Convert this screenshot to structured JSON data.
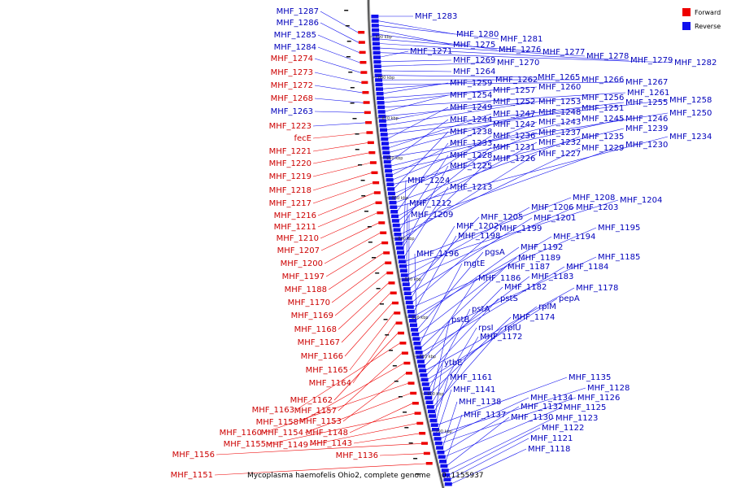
{
  "caption": "Mycoplasma haemofelis Ohio2, complete genome",
  "range_label": "0..1155937",
  "legend": [
    {
      "label": "Forward",
      "color": "#ee0000"
    },
    {
      "label": "Reverse",
      "color": "#1010ee"
    }
  ],
  "colors": {
    "forward": "#ee0000",
    "reverse": "#1010ee",
    "backbone": "#444444",
    "label_forward": "#cc0000",
    "label_reverse": "#0000bb"
  },
  "scale_marks": [
    "890 kbp",
    "880 kbp",
    "870 kbp",
    "860 kbp",
    "850 kbp",
    "840 kbp",
    "830 kbp",
    "820 kbp",
    "810 kbp",
    "800 kbp",
    "790 kbp"
  ],
  "forward_labels": [
    "MHF_1287",
    "MHF_1286",
    "MHF_1285",
    "MHF_1284",
    "MHF_1274",
    "MHF_1273",
    "MHF_1272",
    "MHF_1268",
    "MHF_1263",
    "MHF_1223",
    "fecE",
    "MHF_1221",
    "MHF_1220",
    "MHF_1219",
    "MHF_1218",
    "MHF_1217",
    "MHF_1216",
    "MHF_1211",
    "MHF_1210",
    "MHF_1207",
    "MHF_1200",
    "MHF_1197",
    "MHF_1188",
    "MHF_1170",
    "MHF_1169",
    "MHF_1168",
    "MHF_1167",
    "MHF_1166",
    "MHF_1165",
    "MHF_1164",
    "MHF_1162",
    "MHF_1163",
    "MHF_1157",
    "MHF_1158",
    "MHF_1153",
    "MHF_1160",
    "MHF_1154",
    "MHF_1148",
    "MHF_1155",
    "MHF_1149",
    "MHF_1143",
    "MHF_1156",
    "MHF_1136",
    "MHF_1151"
  ],
  "reverse_labels": [
    "MHF_1283",
    "MHF_1280",
    "MHF_1281",
    "MHF_1275",
    "MHF_1276",
    "MHF_1277",
    "MHF_1278",
    "MHF_1279",
    "MHF_1282",
    "MHF_1271",
    "MHF_1269",
    "MHF_1270",
    "MHF_1264",
    "MHF_1265",
    "MHF_1266",
    "MHF_1267",
    "MHF_1262",
    "MHF_1259",
    "MHF_1260",
    "MHF_1257",
    "MHF_1261",
    "MHF_1254",
    "MHF_1256",
    "MHF_1252",
    "MHF_1253",
    "MHF_1255",
    "MHF_1258",
    "MHF_1249",
    "MHF_1251",
    "MHF_1247",
    "MHF_1248",
    "MHF_1250",
    "MHF_1244",
    "MHF_1245",
    "MHF_1246",
    "MHF_1242",
    "MHF_1243",
    "MHF_1239",
    "MHF_1238",
    "MHF_1237",
    "MHF_1236",
    "MHF_1235",
    "MHF_1234",
    "MHF_1233",
    "MHF_1232",
    "MHF_1231",
    "MHF_1230",
    "MHF_1228",
    "MHF_1229",
    "MHF_1227",
    "MHF_1226",
    "MHF_1225",
    "MHF_1224",
    "MHF_1213",
    "MHF_1208",
    "MHF_1204",
    "MHF_1212",
    "MHF_1206",
    "MHF_1203",
    "MHF_1209",
    "MHF_1205",
    "MHF_1201",
    "MHF_1202",
    "MHF_1199",
    "MHF_1195",
    "MHF_1198",
    "MHF_1194",
    "MHF_1192",
    "MHF_1196",
    "pgsA",
    "MHF_1189",
    "MHF_1185",
    "mgtE",
    "MHF_1187",
    "MHF_1184",
    "MHF_1183",
    "MHF_1186",
    "MHF_1182",
    "MHF_1178",
    "pstS",
    "pepA",
    "rplM",
    "pstA",
    "MHF_1174",
    "pstB",
    "rpsI",
    "rplU",
    "MHF_1172",
    "ytbE",
    "MHF_1161",
    "MHF_1135",
    "MHF_1141",
    "MHF_1128",
    "MHF_1134",
    "MHF_1126",
    "MHF_1138",
    "MHF_1132",
    "MHF_1125",
    "MHF_1137",
    "MHF_1130",
    "MHF_1123",
    "MHF_1122",
    "MHF_1121",
    "MHF_1118"
  ]
}
